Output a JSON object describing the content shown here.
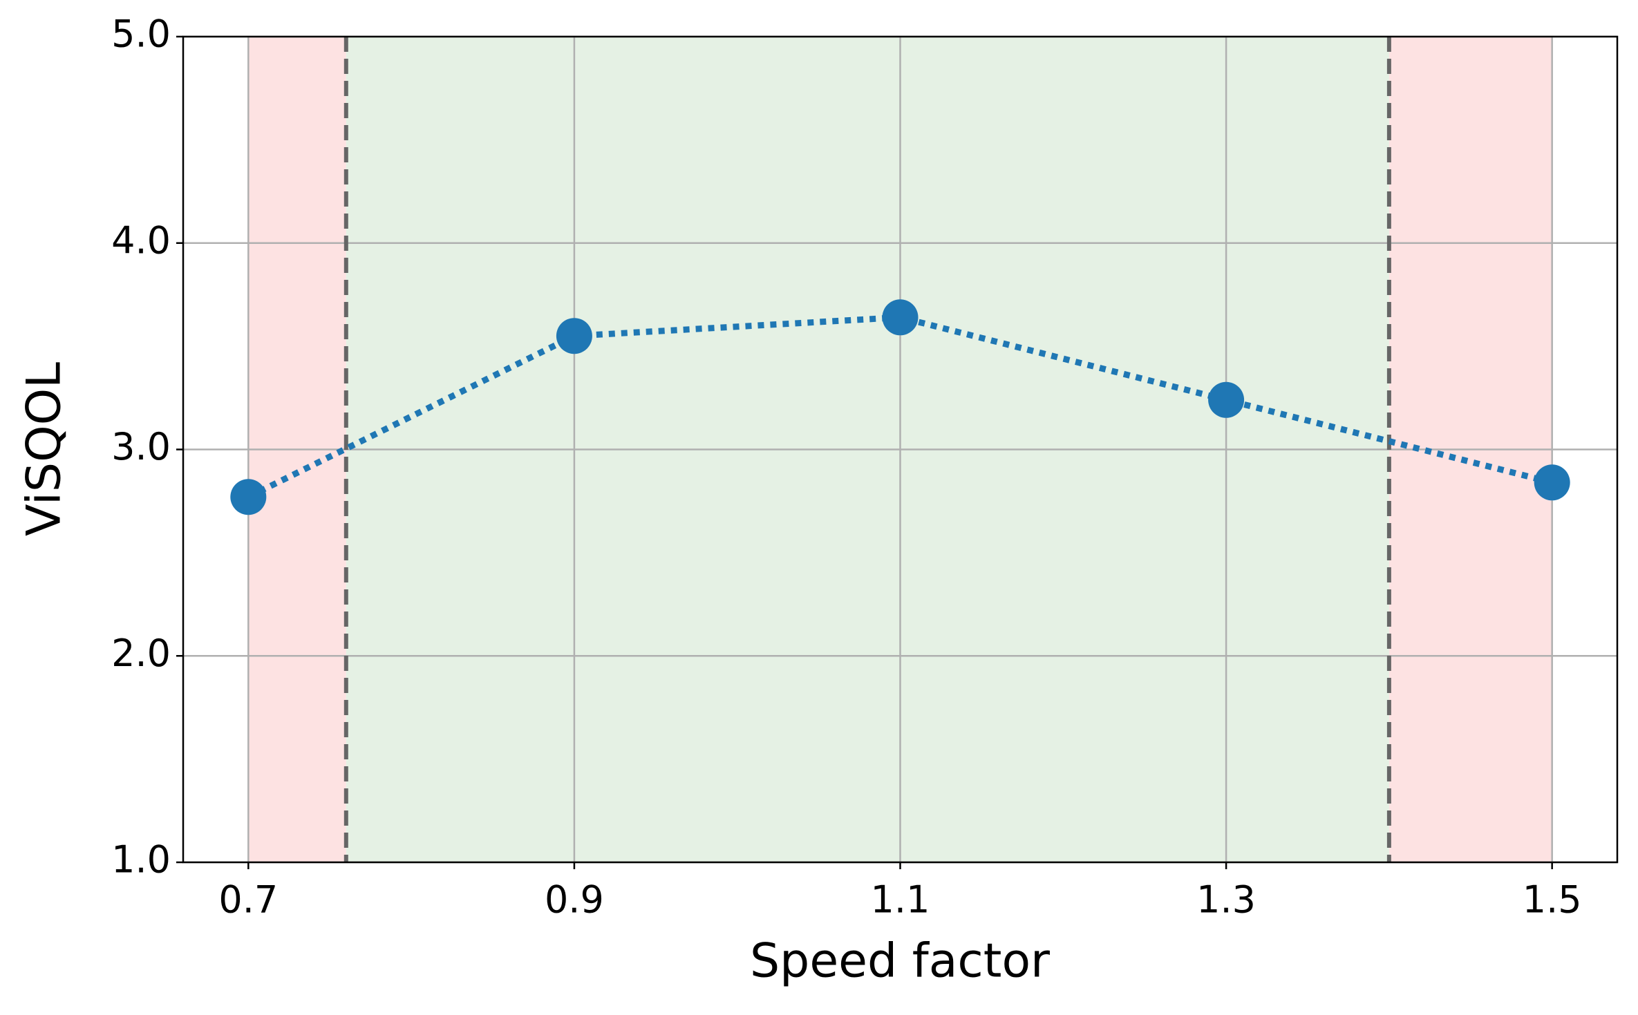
{
  "chart_data": {
    "type": "line",
    "x_label": "Speed factor",
    "y_label": "ViSQOL",
    "x": [
      0.7,
      0.9,
      1.1,
      1.3,
      1.5
    ],
    "series": [
      {
        "color": "#1f77b4",
        "values": [
          2.77,
          3.55,
          3.64,
          3.24,
          2.84
        ]
      }
    ],
    "xlim": [
      0.66,
      1.54
    ],
    "ylim": [
      1,
      5
    ],
    "xticks": [
      0.7,
      0.9,
      1.1,
      1.3,
      1.5
    ],
    "yticks": [
      {
        "value": 1,
        "label": "1.0"
      },
      {
        "value": 2,
        "label": "2.0"
      },
      {
        "value": 3,
        "label": "3.0"
      },
      {
        "value": 4,
        "label": "4.0"
      },
      {
        "value": 5,
        "label": "5.0"
      }
    ],
    "grid": true,
    "spans": [
      {
        "x": [
          0.7,
          0.76
        ],
        "color": "#fde2e2"
      },
      {
        "x": [
          0.76,
          1.4
        ],
        "color": "#e5f1e4"
      },
      {
        "x": [
          1.4,
          1.5
        ],
        "color": "#fde2e2"
      }
    ],
    "vlines": [
      0.76,
      1.4
    ],
    "vline_color": "#666666"
  }
}
